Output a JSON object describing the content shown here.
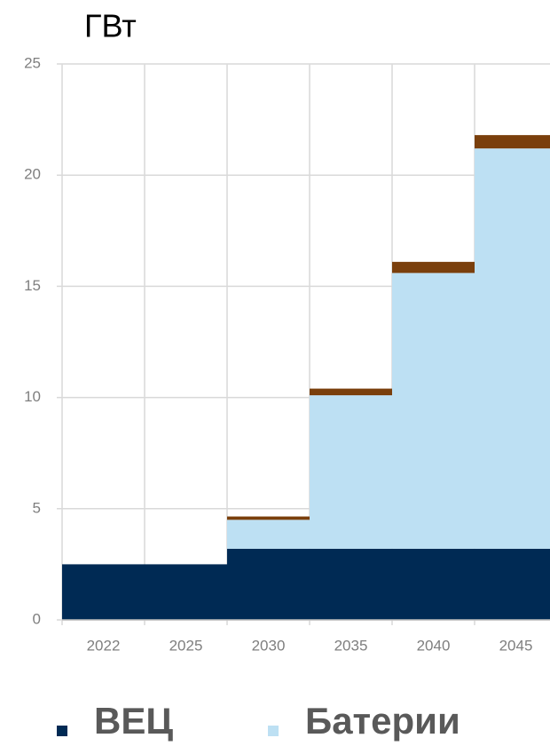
{
  "chart_data": {
    "type": "stacked-bar",
    "y_label": "ГВт",
    "categories": [
      "2022",
      "2025",
      "2030",
      "2035",
      "2040",
      "2045"
    ],
    "series": [
      {
        "name": "ВЕЦ",
        "color": "#002a54",
        "values": [
          2.5,
          2.5,
          3.2,
          3.2,
          3.2,
          3.2
        ]
      },
      {
        "name": "Батерии",
        "color": "#bde0f3",
        "values": [
          0,
          0,
          1.3,
          6.9,
          12.4,
          18.0
        ]
      },
      {
        "color": "#7a3f0c",
        "values": [
          0,
          0,
          0.15,
          0.3,
          0.5,
          0.6
        ]
      }
    ],
    "ylim": [
      0,
      25
    ],
    "yticks": [
      0,
      5,
      10,
      15,
      20,
      25
    ],
    "grid": true
  }
}
